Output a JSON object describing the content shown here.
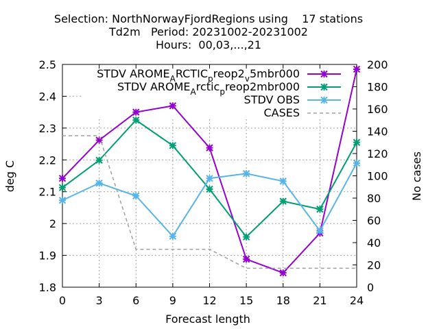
{
  "chart_data": {
    "type": "line",
    "title": [
      "Selection: NorthNorwayFjordRegions using    17 stations",
      "Td2m   Period: 20231002-20231002",
      "Hours:  00,03,...,21"
    ],
    "xlabel": "Forecast length",
    "ylabel": "deg C",
    "y2label": "No cases",
    "x": [
      0,
      3,
      6,
      9,
      12,
      15,
      18,
      21,
      24
    ],
    "xticks": [
      "0",
      "3",
      "6",
      "9",
      "12",
      "15",
      "18",
      "21",
      "24"
    ],
    "ylim": [
      1.8,
      2.5
    ],
    "yticks": [
      "1.8",
      "1.9",
      "2",
      "2.1",
      "2.2",
      "2.3",
      "2.4",
      "2.5"
    ],
    "y2lim": [
      0,
      200
    ],
    "y2ticks": [
      "0",
      "20",
      "40",
      "60",
      "80",
      "100",
      "120",
      "140",
      "160",
      "180",
      "200"
    ],
    "grid": true,
    "legend_position": "top-right",
    "series": [
      {
        "name": "STDV AROME_ARCTIC_preop2_v5mbr000",
        "legend_parts": [
          [
            "STDV AROME",
            ""
          ],
          [
            "A",
            "sub"
          ],
          [
            "RCTIC",
            ""
          ],
          [
            "p",
            "sub"
          ],
          [
            "reop2",
            ""
          ],
          [
            "v",
            "sub"
          ],
          [
            "5mbr000",
            ""
          ]
        ],
        "color": "#9400d3",
        "marker": "x",
        "axis": "y",
        "values": [
          2.142,
          2.262,
          2.35,
          2.37,
          2.238,
          1.888,
          1.845,
          1.97,
          2.485
        ]
      },
      {
        "name": "STDV AROME_Arctic_preop2mbr000",
        "legend_parts": [
          [
            "STDV AROME",
            ""
          ],
          [
            "A",
            "sub"
          ],
          [
            "rctic",
            ""
          ],
          [
            "p",
            "sub"
          ],
          [
            "reop2mbr000",
            ""
          ]
        ],
        "color": "#009e73",
        "marker": "x",
        "axis": "y",
        "values": [
          2.113,
          2.199,
          2.325,
          2.245,
          2.108,
          1.958,
          2.07,
          2.045,
          2.255
        ]
      },
      {
        "name": "STDV OBS",
        "color": "#56b4e9",
        "marker": "x",
        "axis": "y",
        "values": [
          2.073,
          2.127,
          2.087,
          1.96,
          2.142,
          2.157,
          2.133,
          1.977,
          2.19
        ]
      },
      {
        "name": "CASES",
        "color": "#a0a0a0",
        "dashed": true,
        "axis": "y2",
        "values": [
          136,
          136,
          34,
          34,
          34,
          17,
          17,
          17,
          17
        ]
      }
    ]
  }
}
